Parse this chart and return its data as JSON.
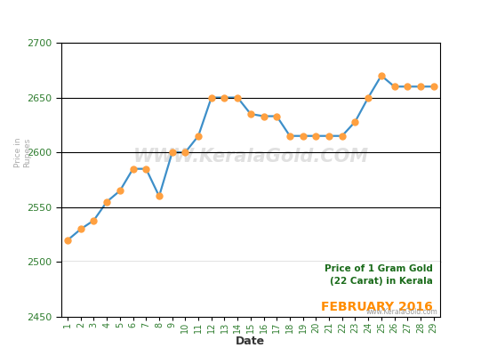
{
  "dates": [
    1,
    2,
    3,
    4,
    5,
    6,
    7,
    8,
    9,
    10,
    11,
    12,
    13,
    14,
    15,
    16,
    17,
    18,
    19,
    20,
    21,
    22,
    23,
    24,
    25,
    26,
    27,
    28,
    29
  ],
  "prices": [
    2520,
    2530,
    2538,
    2555,
    2565,
    2585,
    2585,
    2560,
    2600,
    2600,
    2615,
    2650,
    2650,
    2650,
    2635,
    2633,
    2633,
    2615,
    2615,
    2615,
    2615,
    2615,
    2628,
    2650,
    2670,
    2660,
    2660,
    2660,
    2660
  ],
  "line_color": "#3d8fc9",
  "marker_color": "#FFA040",
  "marker_size": 5,
  "line_width": 1.6,
  "ylim_main": [
    2500,
    2700
  ],
  "ylim_full": [
    2450,
    2700
  ],
  "yticks": [
    2500,
    2550,
    2600,
    2650,
    2700
  ],
  "xlabel": "Date",
  "ylabel_main": "Price in\nRupees",
  "title_line1": "Price of 1 Gram Gold",
  "title_line2": "(22 Carat) in Kerala",
  "title_line3": "FEBRUARY 2016",
  "title_color1": "#1a6b1a",
  "title_color2": "#FF8C00",
  "watermark": "www.KeralaGold.com",
  "watermark_main": "WWW.KeralaGold.COM",
  "bg_color": "#ffffff",
  "grid_color": "#000000",
  "tick_color": "#2e7d2e",
  "axis_label_color": "#aaaaaa",
  "border_color": "#000000"
}
